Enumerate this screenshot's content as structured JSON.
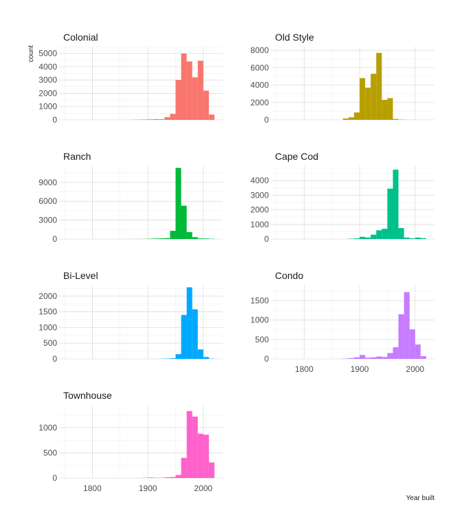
{
  "chart_data": {
    "type": "bar",
    "subtype": "faceted-histogram",
    "xlabel": "Year built",
    "ylabel": "count",
    "grid": true,
    "legend": "none",
    "x_ticks": [
      1800,
      1900,
      2000
    ],
    "x_tick_labels": [
      "1800",
      "1900",
      "2000"
    ],
    "xlim": [
      1740,
      2035
    ],
    "bin_width": 10,
    "bin_starts": [
      1870,
      1880,
      1890,
      1900,
      1910,
      1920,
      1930,
      1940,
      1950,
      1960,
      1970,
      1980,
      1990,
      2000,
      2010
    ],
    "facets": [
      {
        "name": "Colonial",
        "color": "#F8766D",
        "ylim": [
          0,
          5500
        ],
        "y_ticks": [
          0,
          1000,
          2000,
          3000,
          4000,
          5000
        ],
        "y_tick_labels": [
          "0",
          "1000",
          "2000",
          "3000",
          "4000",
          "5000"
        ],
        "values": [
          10,
          20,
          30,
          40,
          60,
          50,
          200,
          450,
          3000,
          5000,
          4400,
          3200,
          4450,
          2200,
          400
        ]
      },
      {
        "name": "Old Style",
        "color": "#B79F00",
        "ylim": [
          0,
          8400
        ],
        "y_ticks": [
          0,
          2000,
          4000,
          6000,
          8000
        ],
        "y_tick_labels": [
          "0",
          "2000",
          "4000",
          "6000",
          "8000"
        ],
        "values": [
          150,
          300,
          850,
          4800,
          3700,
          5300,
          7700,
          2300,
          2500,
          100,
          30,
          10,
          5,
          0,
          0
        ]
      },
      {
        "name": "Ranch",
        "color": "#00BA38",
        "ylim": [
          0,
          11600
        ],
        "y_ticks": [
          0,
          3000,
          6000,
          9000
        ],
        "y_tick_labels": [
          "0",
          "3000",
          "6000",
          "9000"
        ],
        "values": [
          10,
          10,
          20,
          50,
          80,
          100,
          150,
          1300,
          11300,
          5300,
          1100,
          300,
          100,
          80,
          40
        ]
      },
      {
        "name": "Cape Cod",
        "color": "#00C08B",
        "ylim": [
          0,
          5000
        ],
        "y_ticks": [
          0,
          1000,
          2000,
          3000,
          4000
        ],
        "y_tick_labels": [
          "0",
          "1000",
          "2000",
          "3000",
          "4000"
        ],
        "values": [
          0,
          20,
          50,
          150,
          100,
          300,
          600,
          700,
          3450,
          4750,
          750,
          100,
          50,
          100,
          60
        ]
      },
      {
        "name": "Bi-Level",
        "color": "#00A9FF",
        "ylim": [
          0,
          2350
        ],
        "y_ticks": [
          0,
          500,
          1000,
          1500,
          2000
        ],
        "y_tick_labels": [
          "0",
          "500",
          "1000",
          "1500",
          "2000"
        ],
        "values": [
          0,
          0,
          0,
          0,
          0,
          5,
          10,
          20,
          150,
          1400,
          2280,
          1580,
          300,
          60,
          10
        ]
      },
      {
        "name": "Condo",
        "color": "#C77CFF",
        "ylim": [
          0,
          1900
        ],
        "y_ticks": [
          0,
          500,
          1000,
          1500
        ],
        "y_tick_labels": [
          "0",
          "500",
          "1000",
          "1500"
        ],
        "values": [
          10,
          20,
          40,
          100,
          30,
          40,
          60,
          50,
          150,
          300,
          1150,
          1720,
          760,
          370,
          70
        ]
      },
      {
        "name": "Townhouse",
        "color": "#FF61CC",
        "ylim": [
          0,
          1450
        ],
        "y_ticks": [
          0,
          500,
          1000
        ],
        "y_tick_labels": [
          "0",
          "500",
          "1000"
        ],
        "values": [
          0,
          0,
          5,
          10,
          5,
          5,
          15,
          20,
          60,
          400,
          1330,
          1220,
          880,
          860,
          310
        ]
      }
    ]
  }
}
